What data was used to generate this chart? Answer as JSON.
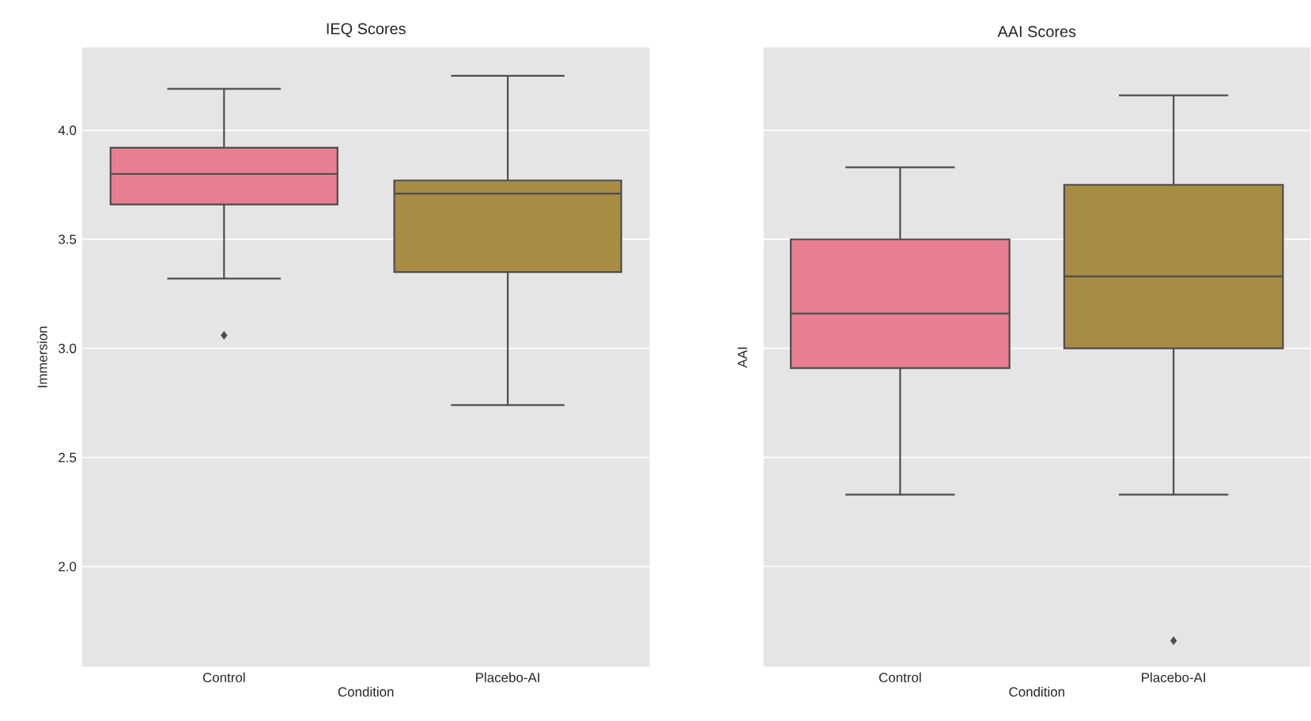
{
  "chart_data": [
    {
      "type": "box",
      "title": "IEQ Scores",
      "xlabel": "Condition",
      "ylabel": "Immersion",
      "categories": [
        "Control",
        "Placebo-AI"
      ],
      "boxes": [
        {
          "low": 3.32,
          "q1": 3.66,
          "median": 3.8,
          "q3": 3.92,
          "high": 4.19,
          "outliers": [
            3.06
          ]
        },
        {
          "low": 2.74,
          "q1": 3.35,
          "median": 3.71,
          "q3": 3.77,
          "high": 4.25
        }
      ],
      "colors": [
        "#e87e91",
        "#a98c43"
      ],
      "ylim": [
        1.54,
        4.38
      ],
      "yticks": [
        {
          "value": 2.0,
          "label": "2.0"
        },
        {
          "value": 2.5,
          "label": "2.5"
        },
        {
          "value": 3.0,
          "label": "3.0"
        },
        {
          "value": 3.5,
          "label": "3.5"
        },
        {
          "value": 4.0,
          "label": "4.0"
        }
      ],
      "grid": "y"
    },
    {
      "type": "box",
      "title": "AAI Scores",
      "xlabel": "Condition",
      "ylabel": "AAI",
      "categories": [
        "Control",
        "Placebo-AI"
      ],
      "boxes": [
        {
          "low": 2.33,
          "q1": 2.91,
          "median": 3.16,
          "q3": 3.5,
          "high": 3.83
        },
        {
          "low": 2.33,
          "q1": 3.0,
          "median": 3.33,
          "q3": 3.75,
          "high": 4.16,
          "outliers": [
            1.66
          ]
        }
      ],
      "colors": [
        "#e87e91",
        "#a98c43"
      ],
      "ylim": [
        1.54,
        4.38
      ],
      "yticks": [
        {
          "value": 2.0,
          "label": null
        },
        {
          "value": 2.5,
          "label": null
        },
        {
          "value": 3.0,
          "label": null
        },
        {
          "value": 3.5,
          "label": null
        },
        {
          "value": 4.0,
          "label": null
        }
      ],
      "grid": "y",
      "tick_labels": "x"
    }
  ]
}
